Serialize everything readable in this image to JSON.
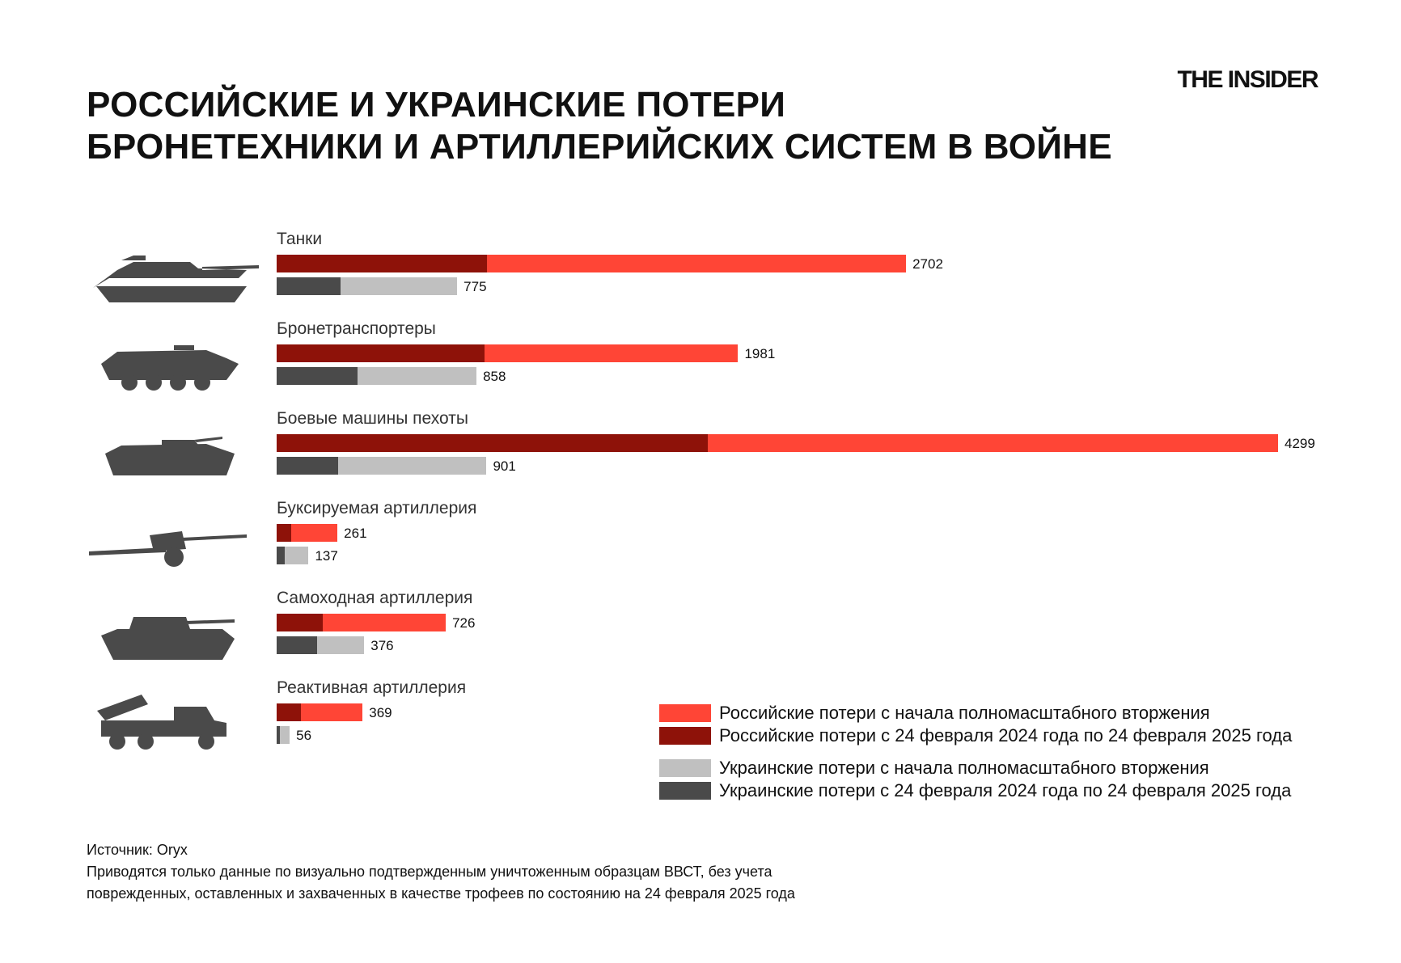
{
  "header": {
    "title_line1": "РОССИЙСКИЕ И УКРАИНСКИЕ ПОТЕРИ",
    "title_line2": "БРОНЕТЕХНИКИ И АРТИЛЛЕРИЙСКИХ СИСТЕМ В ВОЙНЕ",
    "logo": "THE INSIDER"
  },
  "chart_data": {
    "type": "bar",
    "orientation": "horizontal",
    "categories": [
      "Танки",
      "Бронетранспортеры",
      "Боевые машины пехоты",
      "Буксируемая артиллерия",
      "Самоходная артиллерия",
      "Реактивная артиллерия"
    ],
    "icons": [
      "tank-icon",
      "apc-icon",
      "ifv-icon",
      "towed-artillery-icon",
      "self-propelled-artillery-icon",
      "rocket-artillery-icon"
    ],
    "series": [
      {
        "name": "Российские потери с начала полномасштабного вторжения",
        "color": "#ff4536",
        "values": [
          2702,
          1981,
          4299,
          261,
          726,
          369
        ]
      },
      {
        "name": "Российские потери с 24 февраля 2024 года по 24 февраля 2025 года",
        "color": "#8e1209",
        "values": [
          902,
          892,
          1850,
          61,
          198,
          104
        ]
      },
      {
        "name": "Украинские потери с начала полномасштабного вторжения",
        "color": "#c0c0c0",
        "values": [
          775,
          858,
          901,
          137,
          376,
          56
        ]
      },
      {
        "name": "Украинские потери с 24 февраля 2024 года по 24 февраля 2025 года",
        "color": "#4a4a4a",
        "values": [
          275,
          346,
          265,
          35,
          172,
          15
        ]
      }
    ],
    "value_labels": {
      "russia_total": [
        "2702",
        "1981",
        "4299",
        "261",
        "726",
        "369"
      ],
      "ukraine_total": [
        "775",
        "858",
        "901",
        "137",
        "376",
        "56"
      ]
    },
    "xlim": [
      0,
      4299
    ],
    "grid": false,
    "legend_position": "bottom-right"
  },
  "footer": {
    "source": "Источник: Oryx",
    "note_line1": "Приводятся только данные по визуально подтвержденным уничтоженным образцам ВВСТ, без учета",
    "note_line2": "поврежденных, оставленных и захваченных в качестве трофеев по состоянию на 24 февраля 2025 года"
  }
}
